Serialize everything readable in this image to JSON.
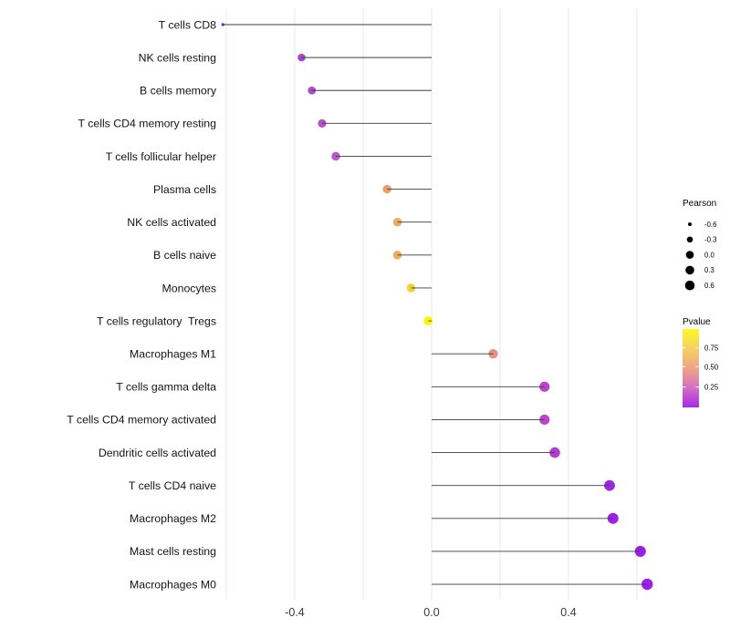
{
  "colors": {
    "background": "#ffffff",
    "gridline": "#e9e9e9",
    "stem": "#3d3d3d",
    "axis_text": "#3a3a3a",
    "label_text": "#141414",
    "legend_dot": "#000000"
  },
  "chart_data": {
    "type": "lollipop",
    "title": "",
    "xlabel": "",
    "ylabel": "",
    "xlim": [
      -0.65,
      0.66
    ],
    "xticks": [
      -0.4,
      0.0,
      0.4
    ],
    "xtick_labels": [
      "-0.4",
      "0.0",
      "0.4"
    ],
    "gridlines_x": [
      -0.6,
      -0.4,
      -0.2,
      0.0,
      0.2,
      0.4,
      0.6
    ],
    "baseline": 0,
    "size_encoding": "Pearson",
    "color_encoding": "Pvalue",
    "points": [
      {
        "label": "T cells CD8",
        "pearson": -0.61,
        "pvalue": 0.05,
        "color": "#8a2bd0",
        "radius": 1.7
      },
      {
        "label": "NK cells resting",
        "pearson": -0.38,
        "pvalue": 0.18,
        "color": "#a847cb",
        "radius": 4.3
      },
      {
        "label": "B cells memory",
        "pearson": -0.35,
        "pvalue": 0.2,
        "color": "#ae4bc9",
        "radius": 4.4
      },
      {
        "label": "T cells CD4 memory resting",
        "pearson": -0.32,
        "pvalue": 0.22,
        "color": "#b550c7",
        "radius": 4.6
      },
      {
        "label": "T cells follicular helper",
        "pearson": -0.28,
        "pvalue": 0.28,
        "color": "#bc59c9",
        "radius": 4.8
      },
      {
        "label": "Plasma cells",
        "pearson": -0.13,
        "pvalue": 0.55,
        "color": "#ec9c6e",
        "radius": 4.7
      },
      {
        "label": "NK cells activated",
        "pearson": -0.1,
        "pvalue": 0.62,
        "color": "#edad63",
        "radius": 4.8
      },
      {
        "label": "B cells naive",
        "pearson": -0.1,
        "pvalue": 0.62,
        "color": "#edad63",
        "radius": 4.8
      },
      {
        "label": "Monocytes",
        "pearson": -0.06,
        "pvalue": 0.78,
        "color": "#f1d13c",
        "radius": 4.8
      },
      {
        "label": "T cells regulatory  Tregs",
        "pearson": -0.01,
        "pvalue": 0.95,
        "color": "#fbf50c",
        "radius": 5.0
      },
      {
        "label": "Macrophages M1",
        "pearson": 0.18,
        "pvalue": 0.5,
        "color": "#e58e85",
        "radius": 5.2
      },
      {
        "label": "T cells gamma delta",
        "pearson": 0.33,
        "pvalue": 0.3,
        "color": "#be45c9",
        "radius": 5.6
      },
      {
        "label": "T cells CD4 memory activated",
        "pearson": 0.33,
        "pvalue": 0.3,
        "color": "#be45c9",
        "radius": 5.6
      },
      {
        "label": "Dendritic cells activated",
        "pearson": 0.36,
        "pvalue": 0.25,
        "color": "#b23cd3",
        "radius": 5.8
      },
      {
        "label": "T cells CD4 naive",
        "pearson": 0.52,
        "pvalue": 0.08,
        "color": "#9d28e2",
        "radius": 5.9
      },
      {
        "label": "Macrophages M2",
        "pearson": 0.53,
        "pvalue": 0.07,
        "color": "#9b23e6",
        "radius": 6.0
      },
      {
        "label": "Mast cells resting",
        "pearson": 0.61,
        "pvalue": 0.05,
        "color": "#9c1fe9",
        "radius": 6.1
      },
      {
        "label": "Macrophages M0",
        "pearson": 0.63,
        "pvalue": 0.04,
        "color": "#9e1fec",
        "radius": 6.2
      }
    ]
  },
  "legend_size": {
    "title": "Pearson",
    "entries": [
      {
        "label": "-0.6",
        "radius": 2.0
      },
      {
        "label": "-0.3",
        "radius": 3.3
      },
      {
        "label": "0.0",
        "radius": 4.3
      },
      {
        "label": "0.3",
        "radius": 4.8
      },
      {
        "label": "0.6",
        "radius": 5.3
      }
    ]
  },
  "legend_color": {
    "title": "Pvalue",
    "ticks": [
      {
        "label": "0.75",
        "t": 0.24
      },
      {
        "label": "0.50",
        "t": 0.48
      },
      {
        "label": "0.25",
        "t": 0.74
      }
    ],
    "gradient_top_to_bottom": [
      "#fcf825",
      "#f5cf65",
      "#eda685",
      "#d470c2",
      "#a52be8"
    ]
  }
}
